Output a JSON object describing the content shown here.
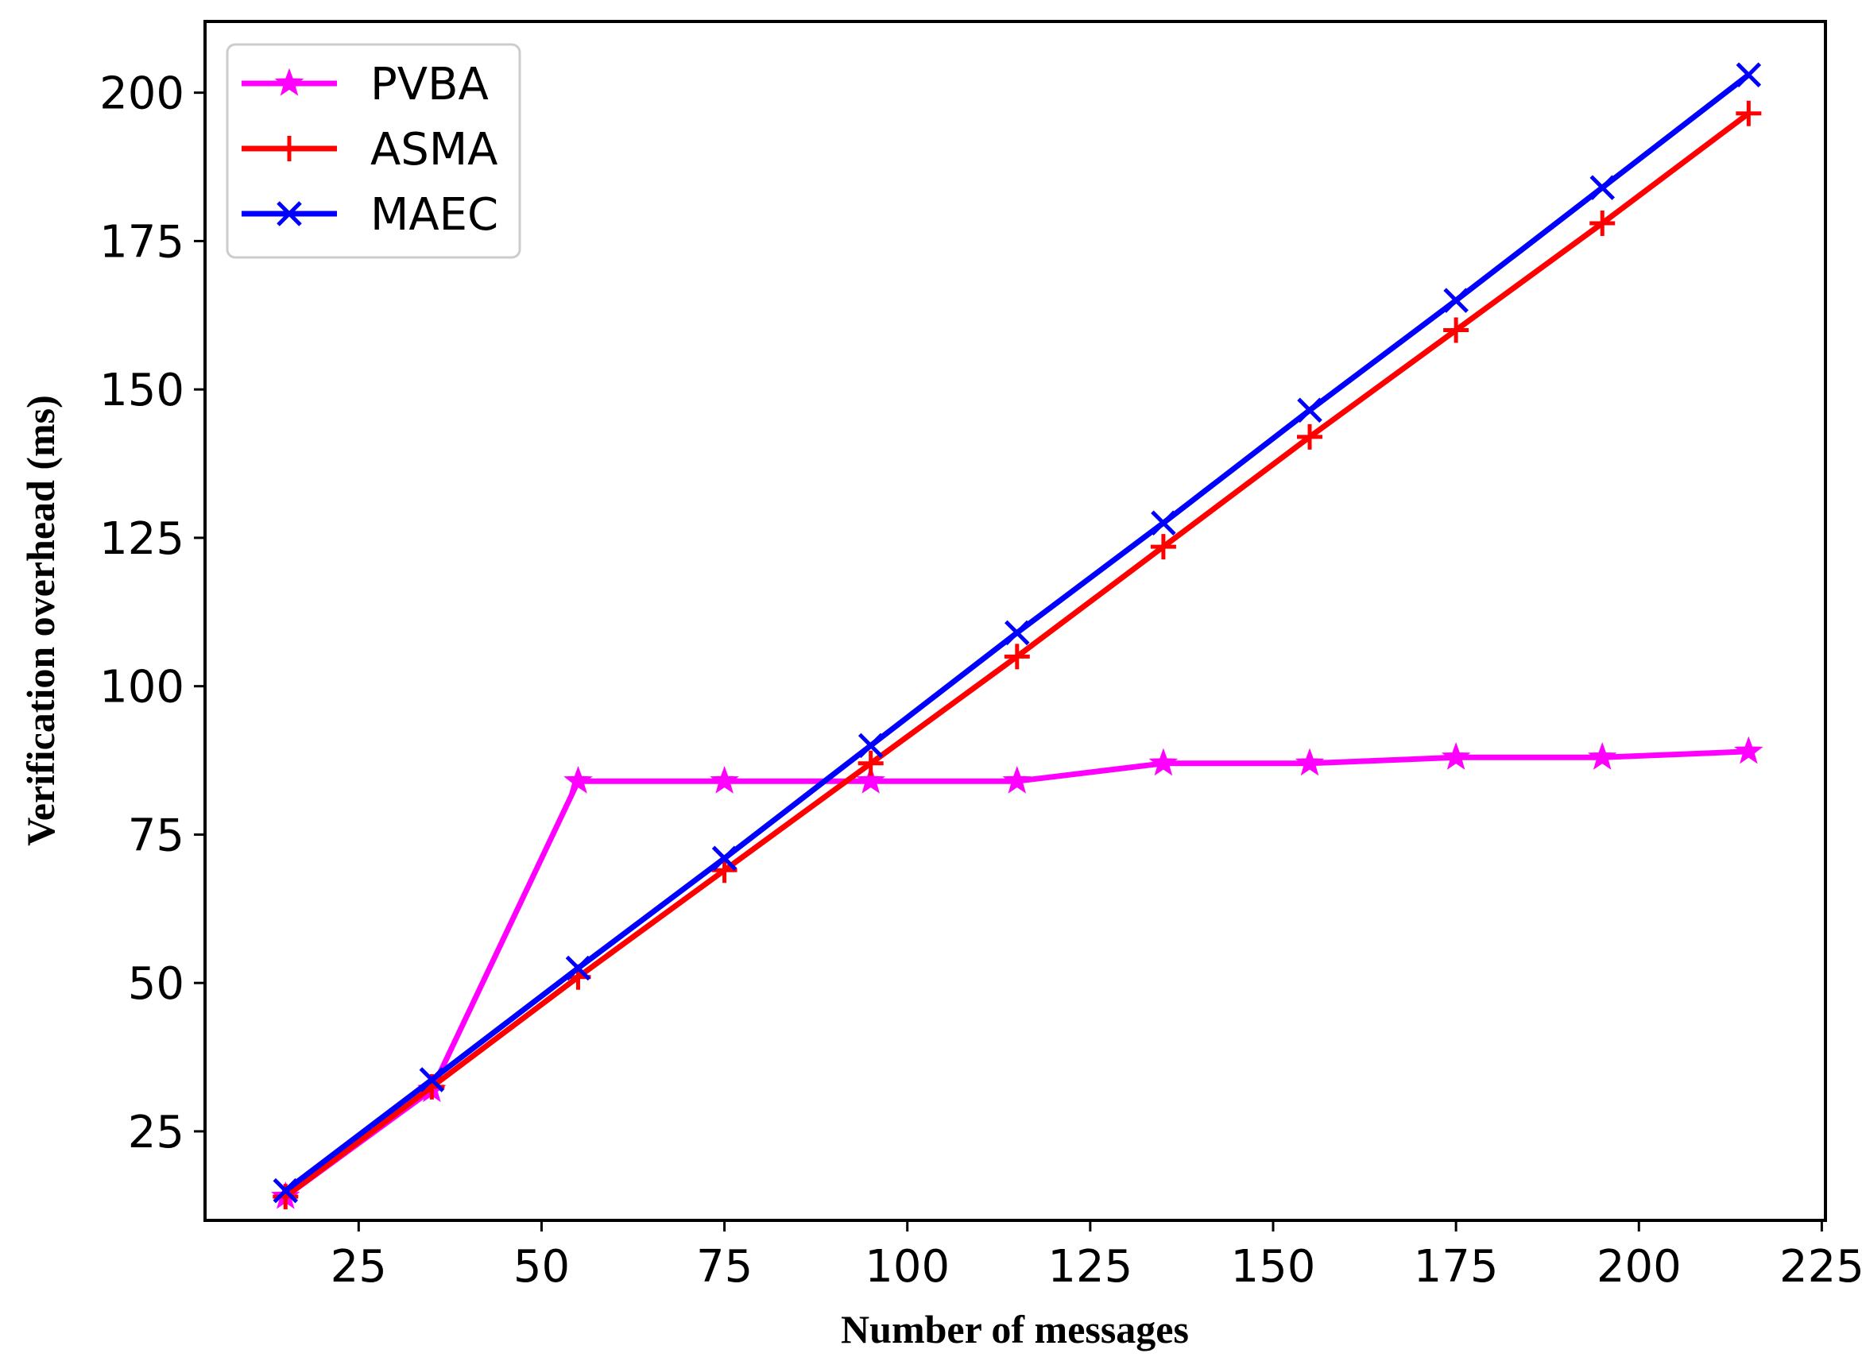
{
  "chart_data": {
    "type": "line",
    "title": "",
    "xlabel": "Number of messages",
    "ylabel": "Verification overhead (ms)",
    "xlim": [
      4,
      225.5
    ],
    "ylim": [
      10,
      212
    ],
    "xticks": [
      25,
      50,
      75,
      100,
      125,
      150,
      175,
      200,
      225
    ],
    "yticks": [
      25,
      50,
      75,
      100,
      125,
      150,
      175,
      200
    ],
    "grid": false,
    "legend_position": "top-left",
    "x": [
      15,
      35,
      55,
      75,
      95,
      115,
      135,
      155,
      175,
      195,
      215
    ],
    "series": [
      {
        "name": "PVBA",
        "color": "#ff00ff",
        "marker": "star",
        "values": [
          14,
          32,
          84,
          84,
          84,
          84,
          87,
          87,
          88,
          88,
          89
        ]
      },
      {
        "name": "ASMA",
        "color": "#ff0000",
        "marker": "plus",
        "values": [
          14,
          32.5,
          51,
          69,
          87,
          105,
          123.5,
          142,
          160,
          178,
          196.5
        ]
      },
      {
        "name": "MAEC",
        "color": "#0000ff",
        "marker": "x",
        "values": [
          15,
          33.7,
          52.5,
          71,
          90,
          109,
          127.5,
          146.5,
          165,
          184,
          203
        ]
      }
    ]
  }
}
